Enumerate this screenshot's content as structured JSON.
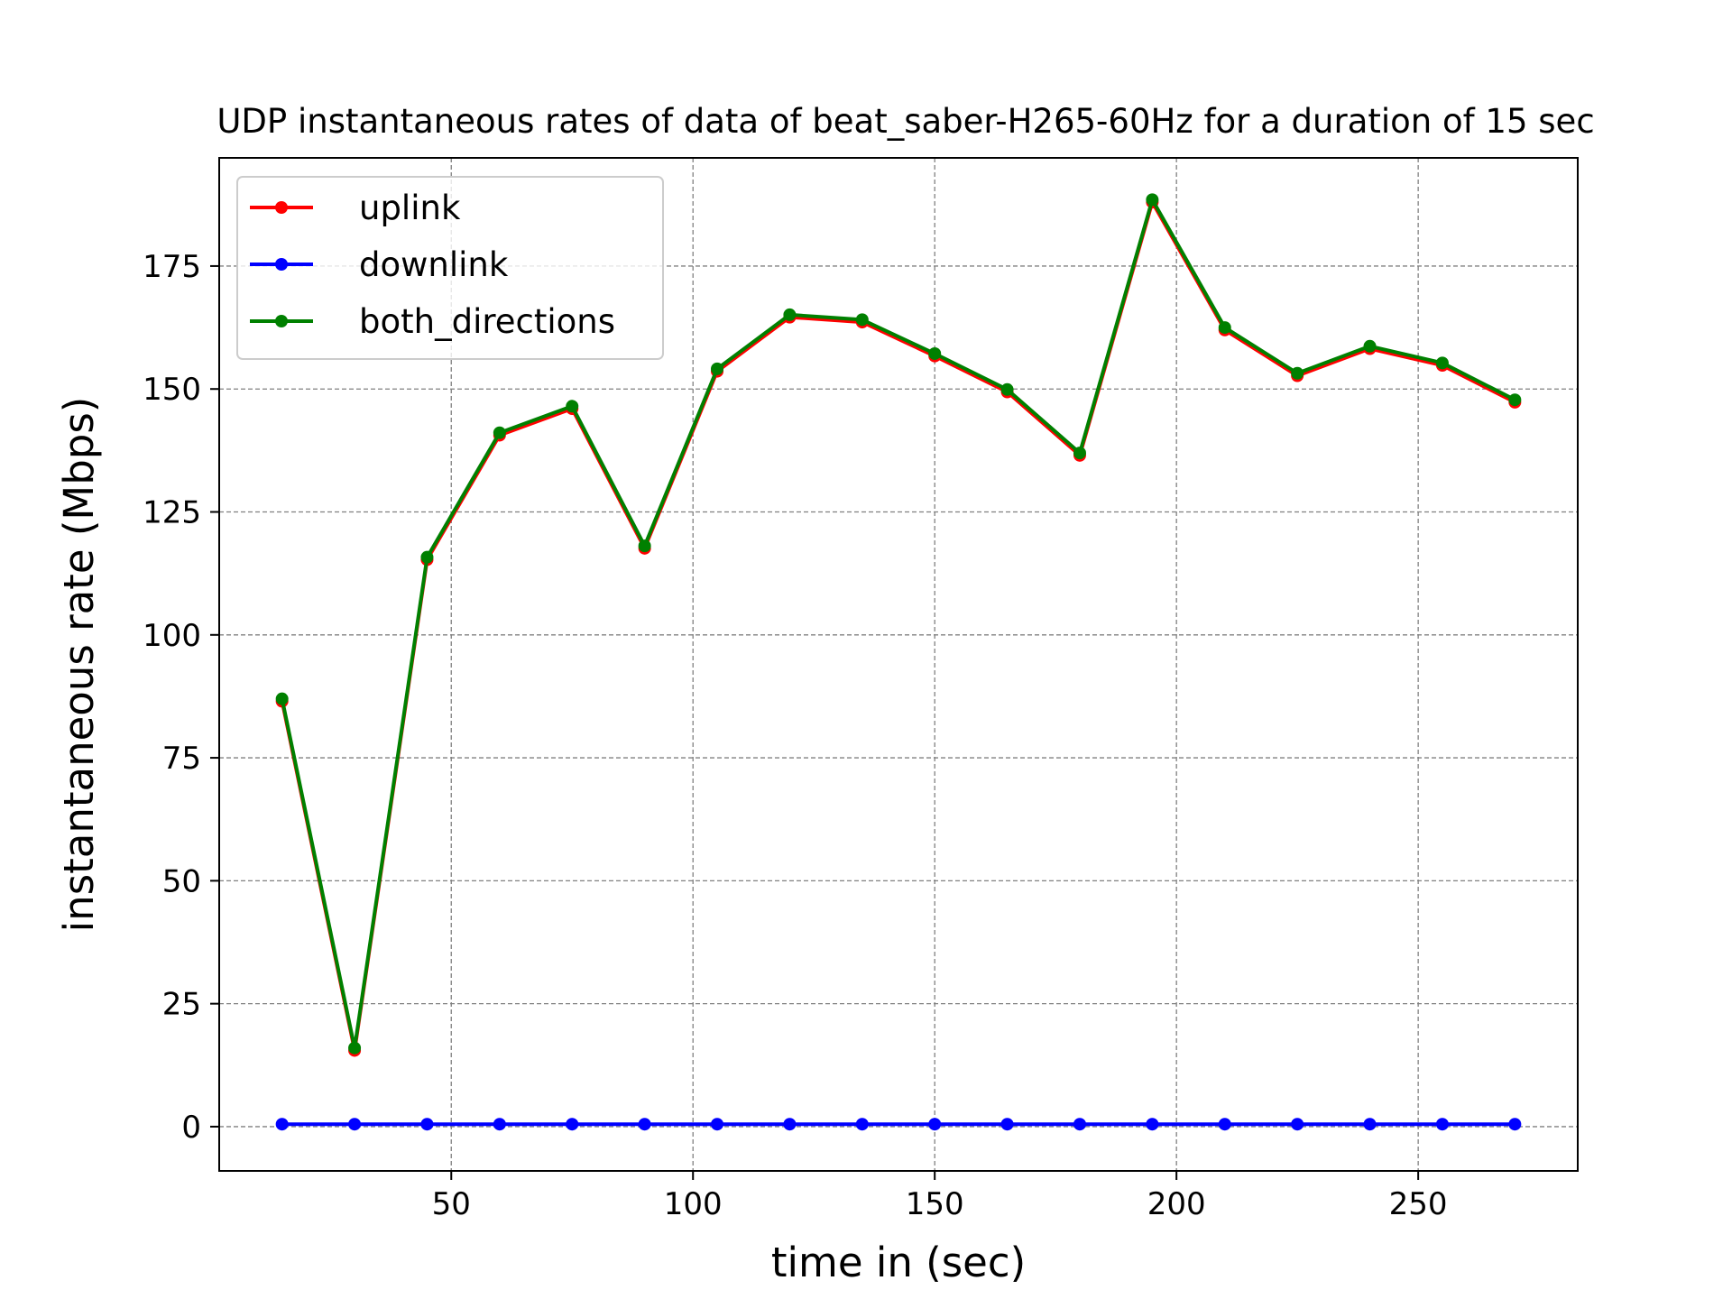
{
  "chart_data": {
    "type": "line",
    "title": "UDP instantaneous rates of data of beat_saber-H265-60Hz for a duration of 15 sec",
    "xlabel": "time in (sec)",
    "ylabel": "instantaneous rate (Mbps)",
    "xlim": [
      2,
      283
    ],
    "ylim": [
      -9,
      197
    ],
    "xticks": [
      50,
      100,
      150,
      200,
      250
    ],
    "yticks": [
      0,
      25,
      50,
      75,
      100,
      125,
      150,
      175
    ],
    "grid": true,
    "legend_position": "top-left",
    "x": [
      15,
      30,
      45,
      60,
      75,
      90,
      105,
      120,
      135,
      150,
      165,
      180,
      195,
      210,
      225,
      240,
      255,
      270
    ],
    "series": [
      {
        "name": "uplink",
        "color": "#ff0000",
        "values": [
          86.5,
          15.5,
          115.3,
          140.6,
          146.0,
          117.6,
          153.6,
          164.6,
          163.6,
          156.7,
          149.4,
          136.5,
          188.0,
          162.0,
          152.7,
          158.2,
          154.8,
          147.3
        ]
      },
      {
        "name": "downlink",
        "color": "#0000ff",
        "values": [
          0.5,
          0.5,
          0.5,
          0.5,
          0.5,
          0.5,
          0.5,
          0.5,
          0.5,
          0.5,
          0.5,
          0.5,
          0.5,
          0.5,
          0.5,
          0.5,
          0.5,
          0.5
        ]
      },
      {
        "name": "both_directions",
        "color": "#008000",
        "values": [
          87.0,
          16.0,
          115.8,
          141.1,
          146.5,
          118.1,
          154.1,
          165.1,
          164.1,
          157.2,
          149.9,
          137.0,
          188.5,
          162.5,
          153.2,
          158.7,
          155.3,
          147.8
        ]
      }
    ]
  }
}
